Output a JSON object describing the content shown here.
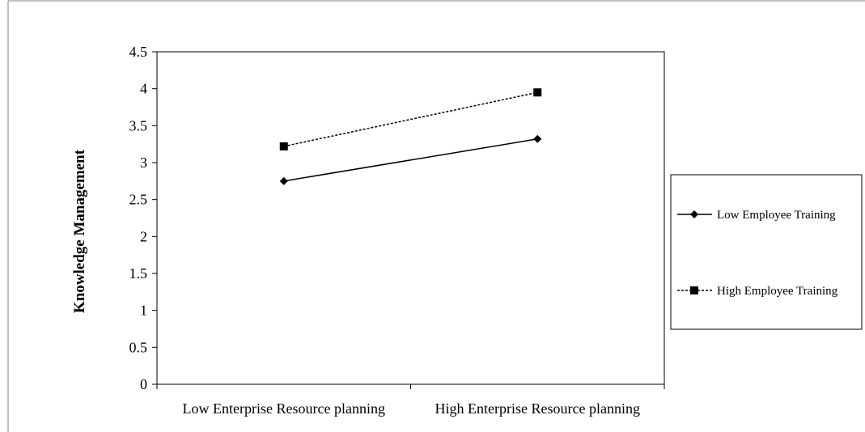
{
  "chart_data": {
    "type": "line",
    "title": "",
    "xlabel": "",
    "ylabel": "Knowledge Management",
    "categories": [
      "Low Enterprise Resource planning",
      "High Enterprise Resource planning"
    ],
    "ylim": [
      0,
      4.5
    ],
    "yticks": [
      "0",
      "0.5",
      "1",
      "1.5",
      "2",
      "2.5",
      "3",
      "3.5",
      "4",
      "4.5"
    ],
    "ytick_values": [
      0,
      0.5,
      1,
      1.5,
      2,
      2.5,
      3,
      3.5,
      4,
      4.5
    ],
    "grid": false,
    "legend_position": "right",
    "series": [
      {
        "name": "Low Employee Training",
        "values": [
          2.75,
          3.32
        ],
        "marker": "diamond",
        "line_style": "solid",
        "color": "#000000"
      },
      {
        "name": "High Employee Training",
        "values": [
          3.22,
          3.95
        ],
        "marker": "square",
        "line_style": "dashed",
        "color": "#000000"
      }
    ]
  }
}
